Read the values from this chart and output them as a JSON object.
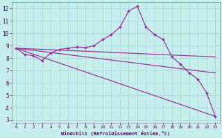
{
  "xlabel": "Windchill (Refroidissement éolien,°C)",
  "background_color": "#c5eeed",
  "grid_color": "#aad8d8",
  "line_color": "#993399",
  "x_ticks": [
    0,
    1,
    2,
    3,
    4,
    5,
    6,
    7,
    8,
    9,
    10,
    11,
    12,
    13,
    14,
    15,
    16,
    17,
    18,
    19,
    20,
    21,
    22,
    23
  ],
  "y_ticks": [
    3,
    4,
    5,
    6,
    7,
    8,
    9,
    10,
    11,
    12
  ],
  "ylim": [
    2.8,
    12.5
  ],
  "xlim": [
    -0.5,
    23.5
  ],
  "curve_main": {
    "x": [
      0,
      1,
      2,
      3,
      4,
      5,
      6,
      7,
      8,
      9,
      10,
      11,
      12,
      13,
      14,
      15,
      16,
      17,
      18,
      19,
      20,
      21,
      22,
      23
    ],
    "y": [
      8.8,
      8.3,
      8.2,
      7.8,
      8.4,
      8.7,
      8.8,
      8.9,
      8.85,
      9.0,
      9.5,
      9.9,
      10.5,
      11.8,
      12.2,
      10.5,
      9.9,
      9.5,
      8.1,
      7.5,
      6.8,
      6.3,
      5.2,
      3.3
    ]
  },
  "fan_lines": [
    {
      "x": [
        0,
        23
      ],
      "y": [
        8.8,
        8.1
      ]
    },
    {
      "x": [
        0,
        23
      ],
      "y": [
        8.8,
        6.8
      ]
    },
    {
      "x": [
        0,
        23
      ],
      "y": [
        8.8,
        3.3
      ]
    }
  ],
  "linewidth": 0.9,
  "markersize": 2.0
}
